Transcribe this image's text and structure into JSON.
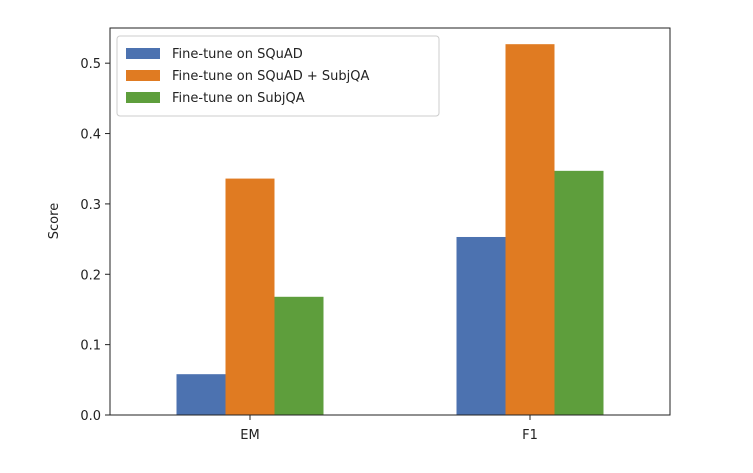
{
  "chart_data": {
    "type": "bar",
    "categories": [
      "EM",
      "F1"
    ],
    "series": [
      {
        "name": "Fine-tune on SQuAD",
        "values": [
          0.058,
          0.253
        ],
        "color": "#4c72b0"
      },
      {
        "name": "Fine-tune on SQuAD + SubjQA",
        "values": [
          0.336,
          0.527
        ],
        "color": "#e07b22"
      },
      {
        "name": "Fine-tune on SubjQA",
        "values": [
          0.168,
          0.347
        ],
        "color": "#5e9e3c"
      }
    ],
    "title": "",
    "xlabel": "",
    "ylabel": "Score",
    "ylim": [
      0,
      0.55
    ],
    "yticks": [
      "0.0",
      "0.1",
      "0.2",
      "0.3",
      "0.4",
      "0.5"
    ],
    "legend": "top-left",
    "grid": false
  }
}
